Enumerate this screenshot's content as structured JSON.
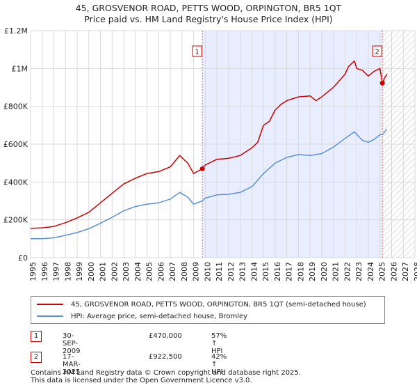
{
  "title_line1": "45, GROSVENOR ROAD, PETTS WOOD, ORPINGTON, BR5 1QT",
  "title_line2": "Price paid vs. HM Land Registry's House Price Index (HPI)",
  "legend": {
    "property_label": "45, GROSVENOR ROAD, PETTS WOOD, ORPINGTON, BR5 1QT (semi-detached house)",
    "hpi_label": "HPI: Average price, semi-detached house, Bromley"
  },
  "sales": [
    {
      "num": "1",
      "date": "30-SEP-2009",
      "price": "£470,000",
      "hpi": "57% ↑ HPI"
    },
    {
      "num": "2",
      "date": "17-MAR-2025",
      "price": "£922,500",
      "hpi": "42% ↑ HPI"
    }
  ],
  "footer": {
    "line1": "Contains HM Land Registry data © Crown copyright and database right 2025.",
    "line2": "This data is licensed under the Open Government Licence v3.0."
  },
  "colors": {
    "property": "#cc0000",
    "hpi": "#5b8fd4",
    "shade": "#e8eeff",
    "grid": "#d9d9d9",
    "sale_line": "#e07070"
  },
  "chart_data": {
    "type": "line",
    "title": "Price paid vs. HM Land Registry's House Price Index (HPI)",
    "xlabel": "",
    "ylabel": "",
    "xlim": [
      1995,
      2028
    ],
    "ylim": [
      0,
      1200000
    ],
    "x_ticks": [
      "1995",
      "1996",
      "1997",
      "1998",
      "1999",
      "2000",
      "2001",
      "2002",
      "2003",
      "2004",
      "2005",
      "2006",
      "2007",
      "2008",
      "2009",
      "2010",
      "2011",
      "2012",
      "2013",
      "2014",
      "2015",
      "2016",
      "2017",
      "2018",
      "2019",
      "2020",
      "2021",
      "2022",
      "2023",
      "2024",
      "2025",
      "2026",
      "2027",
      "2028"
    ],
    "y_ticks": [
      {
        "value": 0,
        "label": "£0"
      },
      {
        "value": 200000,
        "label": "£200K"
      },
      {
        "value": 400000,
        "label": "£400K"
      },
      {
        "value": 600000,
        "label": "£600K"
      },
      {
        "value": 800000,
        "label": "£800K"
      },
      {
        "value": 1000000,
        "label": "£1M"
      },
      {
        "value": 1200000,
        "label": "£1.2M"
      }
    ],
    "shaded_region": [
      2009.75,
      2025.21
    ],
    "future_region": [
      2025.21,
      2028
    ],
    "sale_markers": [
      {
        "num": "1",
        "x": 2009.75,
        "y": 470000
      },
      {
        "num": "2",
        "x": 2025.21,
        "y": 922500
      }
    ],
    "series": [
      {
        "name": "45, GROSVENOR ROAD, PETTS WOOD, ORPINGTON, BR5 1QT (semi-detached house)",
        "x": [
          1995,
          1996,
          1997,
          1998,
          1999,
          2000,
          2001,
          2002,
          2003,
          2004,
          2005,
          2006,
          2007,
          2007.8,
          2008.5,
          2009,
          2009.75,
          2010,
          2011,
          2012,
          2013,
          2014,
          2014.5,
          2015,
          2015.5,
          2016,
          2016.5,
          2017,
          2018,
          2019,
          2019.5,
          2020,
          2021,
          2022,
          2022.3,
          2022.8,
          2023,
          2023.5,
          2024,
          2024.5,
          2025,
          2025.21,
          2025.4,
          2025.6
        ],
        "y": [
          155000,
          158000,
          165000,
          185000,
          210000,
          240000,
          290000,
          340000,
          390000,
          420000,
          445000,
          455000,
          480000,
          540000,
          500000,
          445000,
          470000,
          490000,
          520000,
          525000,
          540000,
          580000,
          610000,
          700000,
          720000,
          780000,
          810000,
          830000,
          850000,
          855000,
          830000,
          850000,
          900000,
          970000,
          1010000,
          1040000,
          1000000,
          990000,
          960000,
          985000,
          1000000,
          922500,
          950000,
          970000
        ]
      },
      {
        "name": "HPI: Average price, semi-detached house, Bromley",
        "x": [
          1995,
          1996,
          1997,
          1998,
          1999,
          2000,
          2001,
          2002,
          2003,
          2004,
          2005,
          2006,
          2007,
          2007.8,
          2008.5,
          2009,
          2009.75,
          2010,
          2011,
          2012,
          2013,
          2014,
          2015,
          2016,
          2017,
          2018,
          2019,
          2020,
          2021,
          2022,
          2022.8,
          2023.5,
          2024,
          2024.5,
          2025,
          2025.21,
          2025.6
        ],
        "y": [
          100000,
          100000,
          105000,
          118000,
          133000,
          153000,
          182000,
          213000,
          248000,
          270000,
          283000,
          290000,
          310000,
          345000,
          320000,
          283000,
          300000,
          315000,
          332000,
          335000,
          345000,
          375000,
          445000,
          500000,
          530000,
          545000,
          540000,
          550000,
          585000,
          630000,
          665000,
          620000,
          610000,
          625000,
          650000,
          650000,
          680000
        ]
      }
    ]
  }
}
